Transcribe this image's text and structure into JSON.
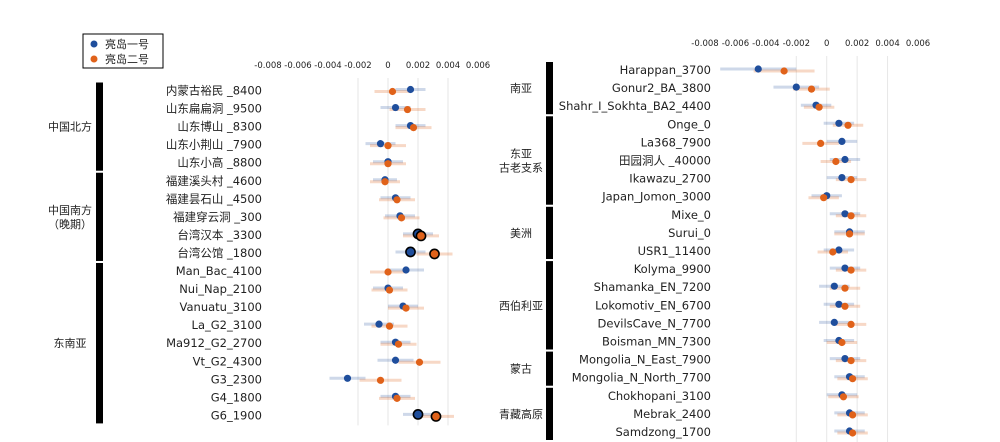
{
  "legend": [
    {
      "name": "亮岛一号",
      "color": "#1f4e9c"
    },
    {
      "name": "亮岛二号",
      "color": "#e0621a"
    }
  ],
  "chart_data": [
    {
      "type": "scatter",
      "panel": "left",
      "title": "",
      "xlabel": "",
      "xlim": [
        -0.008,
        0.006
      ],
      "xticks": [
        "-0.008",
        "-0.006",
        "-0.004",
        "-0.002",
        "0",
        "0.002",
        "0.004",
        "0.006"
      ],
      "groups": [
        {
          "label": "中国北方",
          "count": 5
        },
        {
          "label": "中国南方\n（晚期）",
          "count": 5
        },
        {
          "label": "东南亚",
          "count": 9
        }
      ],
      "categories": [
        "内蒙古裕民 _8400",
        "山东扁扁洞 _9500",
        "山东博山 _8300",
        "山东小荆山 _7900",
        "山东小高 _8800",
        "福建溪头村 _4600",
        "福建昙石山 _4500",
        "福建穿云洞 _300",
        "台湾汉本 _3300",
        "台湾公馆 _1800",
        "Man_Bac_4100",
        "Nui_Nap_2100",
        "Vanuatu_3100",
        "La_G2_3100",
        "Ma912_G2_2700",
        "Vt_G2_4300",
        "G3_2300",
        "G4_1800",
        "G6_1900"
      ],
      "series": [
        {
          "name": "亮岛一号",
          "values": [
            0.0015,
            0.0005,
            0.0015,
            -0.0005,
            0.0,
            -0.0002,
            0.0005,
            0.0008,
            0.002,
            0.0015,
            0.0012,
            0.0,
            0.001,
            -0.0006,
            0.0005,
            0.0005,
            -0.0027,
            0.0005,
            0.002
          ],
          "errors": [
            0.001,
            0.001,
            0.001,
            0.001,
            0.001,
            0.0008,
            0.001,
            0.001,
            0.001,
            0.001,
            0.0012,
            0.001,
            0.001,
            0.001,
            0.001,
            0.0012,
            0.0012,
            0.001,
            0.001
          ]
        },
        {
          "name": "亮岛二号",
          "values": [
            0.0003,
            0.0013,
            0.0017,
            0.0,
            0.0,
            -0.0002,
            0.0006,
            0.0009,
            0.0022,
            0.0031,
            0.0,
            0.0001,
            0.0012,
            0.0001,
            0.0007,
            0.0021,
            -0.0005,
            0.0006,
            0.0032
          ],
          "errors": [
            0.0012,
            0.0012,
            0.0012,
            0.0012,
            0.0012,
            0.001,
            0.0012,
            0.0012,
            0.0012,
            0.0012,
            0.0012,
            0.0012,
            0.0012,
            0.0012,
            0.0012,
            0.0014,
            0.0014,
            0.0012,
            0.0012
          ]
        }
      ],
      "highlighted": [
        "台湾汉本 _3300",
        "台湾公馆 _1800",
        "G6_1900"
      ]
    },
    {
      "type": "scatter",
      "panel": "right",
      "title": "",
      "xlabel": "",
      "xlim": [
        -0.008,
        0.006
      ],
      "xticks": [
        "-0.008",
        "-0.006",
        "-0.004",
        "-0.002",
        "0",
        "0.002",
        "0.004",
        "0.006"
      ],
      "groups": [
        {
          "label": "南亚",
          "count": 3
        },
        {
          "label": "东亚\n古老支系",
          "count": 5
        },
        {
          "label": "美洲",
          "count": 3
        },
        {
          "label": "西伯利亚",
          "count": 5
        },
        {
          "label": "蒙古",
          "count": 2
        },
        {
          "label": "青藏高原",
          "count": 3
        }
      ],
      "categories": [
        "Harappan_3700",
        "Gonur2_BA_3800",
        "Shahr_I_Sokhta_BA2_4400",
        "Onge_0",
        "La368_7900",
        "田园洞人 _40000",
        "Ikawazu_2700",
        "Japan_Jomon_3000",
        "Mixe_0",
        "Surui_0",
        "USR1_11400",
        "Kolyma_9900",
        "Shamanka_EN_7200",
        "Lokomotiv_EN_6700",
        "DevilsCave_N_7700",
        "Boisman_MN_7300",
        "Mongolia_N_East_7900",
        "Mongolia_N_North_7700",
        "Chokhopani_3100",
        "Mebrak_2400",
        "Samdzong_1700"
      ],
      "series": [
        {
          "name": "亮岛一号",
          "values": [
            -0.0045,
            -0.002,
            -0.0007,
            0.0008,
            0.001,
            0.0012,
            0.001,
            0.0,
            0.0012,
            0.0015,
            0.0008,
            0.0012,
            0.0005,
            0.0008,
            0.0005,
            0.0008,
            0.0012,
            0.0015,
            0.001,
            0.0015,
            0.0015
          ],
          "errors": [
            0.0025,
            0.0015,
            0.001,
            0.001,
            0.001,
            0.001,
            0.001,
            0.001,
            0.001,
            0.001,
            0.001,
            0.001,
            0.001,
            0.001,
            0.001,
            0.001,
            0.001,
            0.001,
            0.001,
            0.001,
            0.001
          ]
        },
        {
          "name": "亮岛二号",
          "values": [
            -0.0028,
            -0.001,
            -0.0005,
            0.0014,
            -0.0004,
            0.0006,
            0.0016,
            -0.0002,
            0.0016,
            0.0015,
            0.0004,
            0.0016,
            0.0012,
            0.0012,
            0.0016,
            0.001,
            0.0016,
            0.0017,
            0.0011,
            0.0017,
            0.0017
          ],
          "errors": [
            0.002,
            0.0012,
            0.001,
            0.001,
            0.0012,
            0.001,
            0.001,
            0.001,
            0.001,
            0.001,
            0.001,
            0.001,
            0.001,
            0.001,
            0.001,
            0.001,
            0.001,
            0.001,
            0.001,
            0.001,
            0.001
          ]
        }
      ],
      "highlighted": []
    }
  ]
}
